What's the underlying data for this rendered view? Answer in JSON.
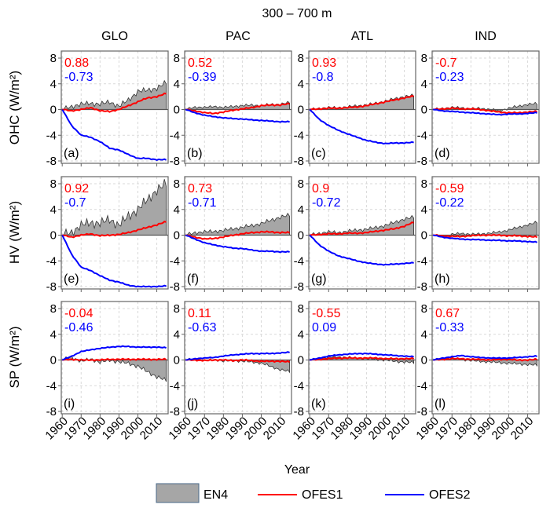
{
  "chart_data": {
    "type": "area",
    "title": "300 – 700 m",
    "xlabel": "Year",
    "x": [
      1960,
      1965,
      1970,
      1975,
      1980,
      1985,
      1990,
      1995,
      2000,
      2005,
      2010,
      2015
    ],
    "xticks": [
      "1960",
      "1970",
      "1980",
      "1990",
      "2000",
      "2010"
    ],
    "xlim": [
      1959.5,
      2016
    ],
    "ylim": [
      -8,
      8
    ],
    "yticks": [
      "8",
      "4",
      "0",
      "-4",
      "-8"
    ],
    "grid": true,
    "columns": [
      "GLO",
      "PAC",
      "ATL",
      "IND"
    ],
    "rows": [
      "OHC (W/m²)",
      "HV (W/m²)",
      "SP (W/m²)"
    ],
    "legend": {
      "placement": "bottom",
      "entries": [
        {
          "name": "EN4",
          "style": "area",
          "color": "#a6a6a6"
        },
        {
          "name": "OFES1",
          "style": "line",
          "color": "#ff0000"
        },
        {
          "name": "OFES2",
          "style": "line",
          "color": "#0000ff"
        }
      ]
    },
    "panels": [
      {
        "label": "(a)",
        "row": 0,
        "col": 0,
        "r1": "0.88",
        "r2": "-0.73",
        "EN4": [
          0,
          0.5,
          0.8,
          1,
          0.8,
          1.2,
          0.5,
          1.5,
          2.8,
          3,
          3.3,
          4.2
        ],
        "OFES1": [
          0,
          -0.2,
          0,
          0.3,
          -0.2,
          -0.3,
          0,
          0.6,
          1.2,
          1.8,
          2.0,
          2.5
        ],
        "OFES2": [
          0,
          -2.5,
          -4,
          -4.3,
          -5,
          -6,
          -6.3,
          -7,
          -7.6,
          -7.6,
          -7.8,
          -7.8
        ]
      },
      {
        "label": "(b)",
        "row": 0,
        "col": 1,
        "r1": "0.52",
        "r2": "-0.39",
        "EN4": [
          0,
          0.4,
          0.3,
          0.5,
          0.3,
          0.5,
          0.6,
          0.7,
          0.6,
          0.8,
          0.8,
          1.1
        ],
        "OFES1": [
          0,
          -0.2,
          -0.5,
          -0.6,
          -0.4,
          -0.1,
          0.1,
          0.3,
          0.6,
          0.7,
          0.7,
          0.9
        ],
        "OFES2": [
          0,
          -0.5,
          -0.9,
          -1.1,
          -1.3,
          -1.4,
          -1.5,
          -1.6,
          -1.7,
          -1.8,
          -1.9,
          -1.9
        ]
      },
      {
        "label": "(c)",
        "row": 0,
        "col": 2,
        "r1": "0.93",
        "r2": "-0.8",
        "EN4": [
          0,
          0.2,
          0.3,
          0.3,
          0.4,
          0.6,
          0.7,
          1,
          1.3,
          1.7,
          2,
          2.2
        ],
        "OFES1": [
          0,
          0.1,
          0.2,
          0.2,
          0.3,
          0.4,
          0.6,
          0.9,
          1.2,
          1.5,
          1.8,
          2.1
        ],
        "OFES2": [
          0,
          -1.5,
          -2.5,
          -3.2,
          -3.8,
          -4.3,
          -4.8,
          -5.1,
          -5.3,
          -5.2,
          -5.2,
          -5.1
        ]
      },
      {
        "label": "(d)",
        "row": 0,
        "col": 3,
        "r1": "-0.7",
        "r2": "-0.23",
        "EN4": [
          0,
          0.2,
          0.3,
          0.3,
          0.1,
          0.2,
          0,
          -0.2,
          0.2,
          0.5,
          0.8,
          0.9
        ],
        "OFES1": [
          0,
          0.1,
          0.2,
          0.1,
          0.1,
          0,
          -0.2,
          -0.4,
          -0.5,
          -0.5,
          -0.4,
          -0.3
        ],
        "OFES2": [
          0,
          -0.2,
          -0.3,
          -0.4,
          -0.5,
          -0.6,
          -0.7,
          -0.8,
          -0.7,
          -0.7,
          -0.6,
          -0.5
        ]
      },
      {
        "label": "(e)",
        "row": 1,
        "col": 0,
        "r1": "0.92",
        "r2": "-0.7",
        "EN4": [
          0,
          0.5,
          1.5,
          2,
          1.8,
          2.5,
          1.5,
          3,
          4,
          5.5,
          7,
          8
        ],
        "OFES1": [
          0,
          -0.3,
          0,
          0.2,
          -0.1,
          0,
          0.1,
          0.4,
          0.8,
          1.2,
          1.6,
          2.1
        ],
        "OFES2": [
          0,
          -3,
          -5,
          -5.5,
          -6.3,
          -7,
          -7.3,
          -7.8,
          -8,
          -8,
          -8,
          -7.9
        ]
      },
      {
        "label": "(f)",
        "row": 1,
        "col": 1,
        "r1": "0.73",
        "r2": "-0.71",
        "EN4": [
          0,
          0.4,
          0.5,
          0.6,
          0.7,
          1,
          1.2,
          1.5,
          1.8,
          2.3,
          2.8,
          3.1
        ],
        "OFES1": [
          0,
          -0.3,
          -0.6,
          -0.5,
          -0.3,
          0,
          0.2,
          0.4,
          0.5,
          0.5,
          0.4,
          0.4
        ],
        "OFES2": [
          0,
          -0.6,
          -1.2,
          -1.5,
          -1.8,
          -2,
          -2.1,
          -2.3,
          -2.5,
          -2.5,
          -2.6,
          -2.6
        ]
      },
      {
        "label": "(g)",
        "row": 1,
        "col": 2,
        "r1": "0.9",
        "r2": "-0.72",
        "EN4": [
          0,
          0.3,
          0.5,
          0.4,
          0.6,
          0.8,
          0.9,
          1.2,
          1.5,
          2,
          2.5,
          2.8
        ],
        "OFES1": [
          0,
          0.1,
          0.2,
          0.2,
          0.3,
          0.3,
          0.4,
          0.6,
          0.8,
          1,
          1.4,
          2
        ],
        "OFES2": [
          0,
          -1.5,
          -2.5,
          -3.2,
          -3.6,
          -4,
          -4.3,
          -4.5,
          -4.6,
          -4.5,
          -4.4,
          -4.3
        ]
      },
      {
        "label": "(h)",
        "row": 1,
        "col": 3,
        "r1": "-0.59",
        "r2": "-0.22",
        "EN4": [
          0,
          -0.2,
          0.1,
          0.3,
          0.1,
          0.2,
          0.3,
          0.5,
          0.8,
          1.2,
          1.6,
          2
        ],
        "OFES1": [
          0,
          -0.1,
          -0.2,
          -0.2,
          -0.1,
          0,
          0,
          0,
          -0.1,
          -0.1,
          -0.2,
          -0.3
        ],
        "OFES2": [
          0,
          -0.3,
          -0.5,
          -0.6,
          -0.7,
          -0.7,
          -0.8,
          -0.8,
          -0.9,
          -0.9,
          -1,
          -1.1
        ]
      },
      {
        "label": "(i)",
        "row": 2,
        "col": 0,
        "r1": "-0.04",
        "r2": "-0.46",
        "EN4": [
          0,
          0.5,
          -0.3,
          0.2,
          -0.4,
          0,
          -0.3,
          -0.5,
          -1,
          -1.8,
          -2.6,
          -3.2
        ],
        "OFES1": [
          0,
          0.1,
          0,
          0,
          0,
          0.1,
          0.1,
          0.1,
          0.1,
          0.1,
          0.1,
          0.1
        ],
        "OFES2": [
          0,
          0.6,
          1.3,
          1.6,
          1.8,
          2,
          2.1,
          2.1,
          2.0,
          2.0,
          2.0,
          1.9
        ]
      },
      {
        "label": "(j)",
        "row": 2,
        "col": 1,
        "r1": "0.11",
        "r2": "-0.63",
        "EN4": [
          0,
          0.2,
          -0.1,
          0.1,
          -0.2,
          -0.1,
          -0.2,
          -0.3,
          -0.5,
          -1,
          -1.5,
          -1.8
        ],
        "OFES1": [
          0,
          0,
          -0.1,
          0,
          0,
          -0.1,
          0,
          -0.1,
          -0.2,
          -0.2,
          -0.2,
          -0.3
        ],
        "OFES2": [
          0,
          0.2,
          0.3,
          0.4,
          0.6,
          0.8,
          0.9,
          1,
          1,
          1,
          1.1,
          1.2
        ]
      },
      {
        "label": "(k)",
        "row": 2,
        "col": 2,
        "r1": "-0.55",
        "r2": "0.09",
        "EN4": [
          0,
          0.2,
          0.4,
          0.5,
          0.4,
          0.3,
          0.2,
          0.1,
          0,
          -0.2,
          -0.3,
          -0.4
        ],
        "OFES1": [
          0,
          0.1,
          0.2,
          0.3,
          0.3,
          0.3,
          0.3,
          0.3,
          0.2,
          0.2,
          0.2,
          0.2
        ],
        "OFES2": [
          0,
          0.3,
          0.6,
          0.8,
          0.9,
          1,
          1,
          0.9,
          0.8,
          0.7,
          0.6,
          0.5
        ]
      },
      {
        "label": "(l)",
        "row": 2,
        "col": 3,
        "r1": "0.67",
        "r2": "-0.33",
        "EN4": [
          0,
          0.2,
          0.3,
          0.1,
          -0.1,
          -0.2,
          -0.3,
          -0.4,
          -0.5,
          -0.6,
          -0.7,
          -0.8
        ],
        "OFES1": [
          0,
          0.1,
          0.2,
          0.2,
          0.1,
          0.1,
          0,
          0.1,
          0.1,
          0,
          0,
          0.1
        ],
        "OFES2": [
          0,
          0.3,
          0.5,
          0.7,
          0.5,
          0.4,
          0.3,
          0.3,
          0.3,
          0.4,
          0.5,
          0.6
        ]
      }
    ]
  }
}
